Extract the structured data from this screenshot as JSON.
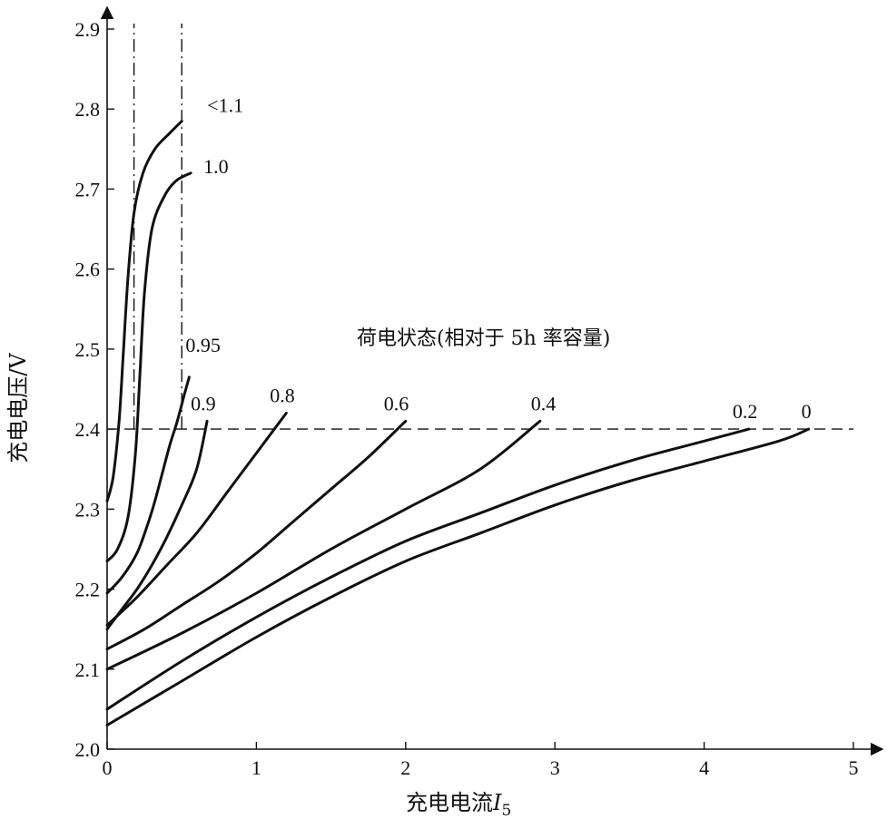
{
  "chart_data": {
    "type": "line",
    "title": "",
    "xlabel": {
      "prefix": "充电电流",
      "italic": "I",
      "sub": "5"
    },
    "ylabel": "充电电压/V",
    "xlim": [
      0,
      5
    ],
    "ylim": [
      2.0,
      2.9
    ],
    "x_ticks": [
      "0",
      "1",
      "2",
      "3",
      "4",
      "5"
    ],
    "y_ticks": [
      "2.0",
      "2.1",
      "2.2",
      "2.3",
      "2.4",
      "2.5",
      "2.6",
      "2.7",
      "2.8",
      "2.9"
    ],
    "annotation": "荷电状态(相对于 5h 率容量)",
    "reference_lines": [
      {
        "orientation": "horizontal",
        "style": "dashed",
        "y": 2.4,
        "x_range": [
          0,
          5
        ]
      },
      {
        "orientation": "vertical",
        "style": "dash-dot",
        "x": 0.18,
        "y_range": [
          2.4,
          2.9
        ]
      },
      {
        "orientation": "vertical",
        "style": "dash-dot",
        "x": 0.5,
        "y_range": [
          2.4,
          2.9
        ]
      }
    ],
    "grid": false,
    "series": [
      {
        "name": "<1.1",
        "x": [
          0.0,
          0.04,
          0.08,
          0.11,
          0.14,
          0.18,
          0.24,
          0.32,
          0.42,
          0.5
        ],
        "y": [
          2.31,
          2.34,
          2.41,
          2.5,
          2.59,
          2.67,
          2.72,
          2.75,
          2.77,
          2.785
        ]
      },
      {
        "name": "1.0",
        "x": [
          0.0,
          0.07,
          0.14,
          0.19,
          0.22,
          0.25,
          0.3,
          0.38,
          0.46,
          0.56
        ],
        "y": [
          2.235,
          2.25,
          2.29,
          2.37,
          2.47,
          2.57,
          2.65,
          2.69,
          2.71,
          2.72
        ]
      },
      {
        "name": "0.95",
        "x": [
          0.0,
          0.1,
          0.2,
          0.27,
          0.32,
          0.37,
          0.42,
          0.47,
          0.52,
          0.55
        ],
        "y": [
          2.195,
          2.215,
          2.245,
          2.28,
          2.31,
          2.345,
          2.38,
          2.41,
          2.445,
          2.465
        ]
      },
      {
        "name": "0.9",
        "x": [
          0.0,
          0.1,
          0.2,
          0.3,
          0.4,
          0.5,
          0.6,
          0.67
        ],
        "y": [
          2.15,
          2.175,
          2.2,
          2.23,
          2.265,
          2.305,
          2.35,
          2.41
        ]
      },
      {
        "name": "0.8",
        "x": [
          0.0,
          0.2,
          0.4,
          0.6,
          0.8,
          1.0,
          1.2
        ],
        "y": [
          2.155,
          2.19,
          2.23,
          2.27,
          2.32,
          2.37,
          2.42
        ]
      },
      {
        "name": "0.6",
        "x": [
          0.0,
          0.25,
          0.5,
          0.75,
          1.0,
          1.25,
          1.5,
          1.75,
          2.0
        ],
        "y": [
          2.125,
          2.15,
          2.18,
          2.21,
          2.245,
          2.285,
          2.325,
          2.365,
          2.41
        ]
      },
      {
        "name": "0.4",
        "x": [
          0.0,
          0.5,
          1.0,
          1.5,
          2.0,
          2.5,
          2.9
        ],
        "y": [
          2.1,
          2.145,
          2.195,
          2.25,
          2.3,
          2.35,
          2.41
        ]
      },
      {
        "name": "0.2",
        "x": [
          0.0,
          0.5,
          1.0,
          1.5,
          2.0,
          2.5,
          3.0,
          3.5,
          4.0,
          4.3
        ],
        "y": [
          2.05,
          2.11,
          2.165,
          2.215,
          2.26,
          2.295,
          2.33,
          2.36,
          2.385,
          2.4
        ]
      },
      {
        "name": "0",
        "x": [
          0.0,
          0.5,
          1.0,
          1.5,
          2.0,
          2.5,
          3.0,
          3.5,
          4.0,
          4.5,
          4.7
        ],
        "y": [
          2.03,
          2.085,
          2.14,
          2.19,
          2.235,
          2.27,
          2.305,
          2.335,
          2.36,
          2.385,
          2.4
        ]
      }
    ]
  }
}
